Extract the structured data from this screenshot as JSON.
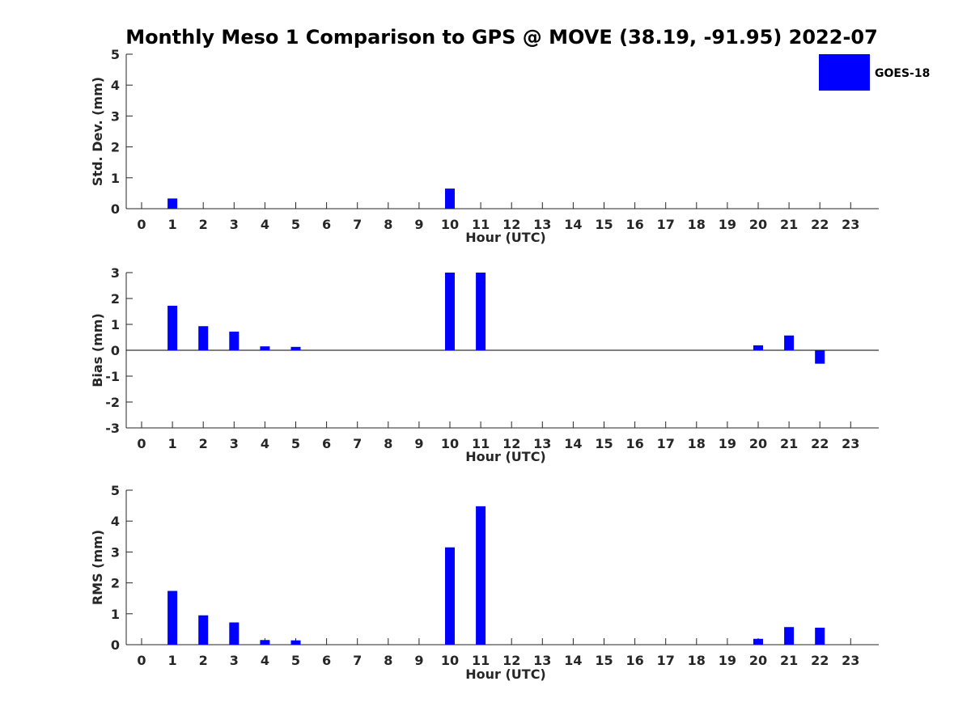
{
  "figure": {
    "title": "Monthly Meso 1 Comparison to GPS @ MOVE (38.19, -91.95) 2022-07",
    "legend_label": "GOES-18",
    "bar_color": "#0000ff"
  },
  "chart_data": [
    {
      "type": "bar",
      "xlabel": "Hour (UTC)",
      "ylabel": "Std. Dev. (mm)",
      "categories": [
        "0",
        "1",
        "2",
        "3",
        "4",
        "5",
        "6",
        "7",
        "8",
        "9",
        "10",
        "11",
        "12",
        "13",
        "14",
        "15",
        "16",
        "17",
        "18",
        "19",
        "20",
        "21",
        "22",
        "23"
      ],
      "series": [
        {
          "name": "GOES-18",
          "values": [
            0,
            0.33,
            0,
            0,
            0,
            0,
            0,
            0,
            0,
            0,
            0.65,
            0,
            0,
            0,
            0,
            0,
            0,
            0,
            0,
            0,
            0,
            0,
            0,
            0
          ]
        }
      ],
      "ylim": [
        0,
        5
      ],
      "yticks": [
        0,
        1,
        2,
        3,
        4,
        5
      ],
      "legend": "top-right",
      "grid": false
    },
    {
      "type": "bar",
      "xlabel": "Hour (UTC)",
      "ylabel": "Bias (mm)",
      "categories": [
        "0",
        "1",
        "2",
        "3",
        "4",
        "5",
        "6",
        "7",
        "8",
        "9",
        "10",
        "11",
        "12",
        "13",
        "14",
        "15",
        "16",
        "17",
        "18",
        "19",
        "20",
        "21",
        "22",
        "23"
      ],
      "series": [
        {
          "name": "GOES-18",
          "values": [
            0,
            1.72,
            0.93,
            0.72,
            0.15,
            0.13,
            0,
            0,
            0,
            0,
            3.0,
            3.0,
            0,
            0,
            0,
            0,
            0,
            0,
            0,
            0,
            0.19,
            0.57,
            -0.52,
            0
          ]
        }
      ],
      "ylim": [
        -3,
        3
      ],
      "yticks": [
        -3,
        -2,
        -1,
        0,
        1,
        2,
        3
      ],
      "zero_line": true,
      "grid": false
    },
    {
      "type": "bar",
      "xlabel": "Hour (UTC)",
      "ylabel": "RMS (mm)",
      "categories": [
        "0",
        "1",
        "2",
        "3",
        "4",
        "5",
        "6",
        "7",
        "8",
        "9",
        "10",
        "11",
        "12",
        "13",
        "14",
        "15",
        "16",
        "17",
        "18",
        "19",
        "20",
        "21",
        "22",
        "23"
      ],
      "series": [
        {
          "name": "GOES-18",
          "values": [
            0,
            1.74,
            0.95,
            0.72,
            0.15,
            0.14,
            0,
            0,
            0,
            0,
            3.15,
            4.48,
            0,
            0,
            0,
            0,
            0,
            0,
            0,
            0,
            0.19,
            0.57,
            0.55,
            0
          ]
        }
      ],
      "ylim": [
        0,
        5
      ],
      "yticks": [
        0,
        1,
        2,
        3,
        4,
        5
      ],
      "grid": false
    }
  ]
}
